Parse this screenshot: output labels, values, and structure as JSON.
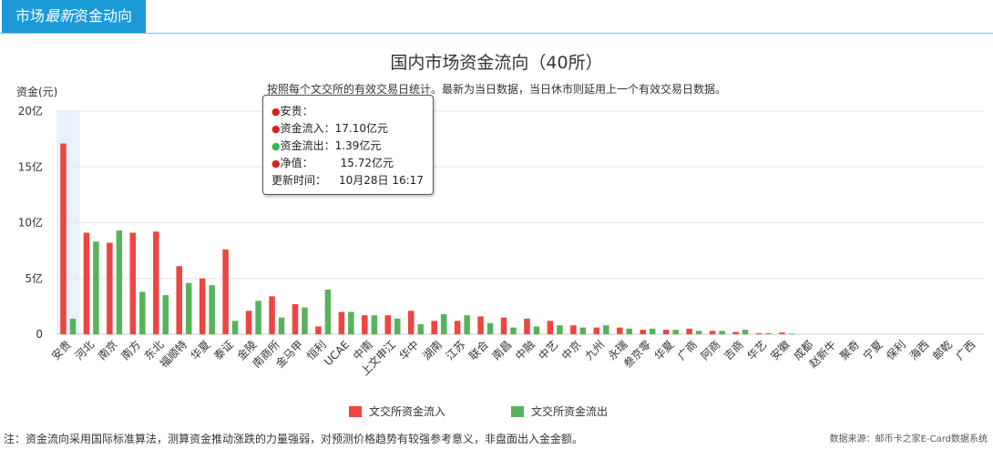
{
  "header": {
    "tab_part1": "市场",
    "tab_em": "最新",
    "tab_part2": "资金动向"
  },
  "chart_data": {
    "type": "bar",
    "title": "国内市场资金流向（40所）",
    "subtitle": "按照每个文交所的有效交易日统计。最新为当日数据，当日休市则延用上一个有效交易日数据。",
    "ylabel": "资金(元)",
    "ylim": [
      0,
      20
    ],
    "yticks": [
      0,
      5,
      10,
      15,
      20
    ],
    "ytick_labels": [
      "0",
      "5亿",
      "10亿",
      "15亿",
      "20亿"
    ],
    "grid": true,
    "legend_position": "bottom",
    "highlight_index": 0,
    "categories": [
      "安贵",
      "河北",
      "南京",
      "南方",
      "东北",
      "福顺特",
      "华夏",
      "泰证",
      "金陵",
      "南商所",
      "金马甲",
      "恒利",
      "UCAE",
      "中南",
      "上文申江",
      "华中",
      "湖南",
      "江苏",
      "联合",
      "南昌",
      "中融",
      "中艺",
      "中京",
      "九州",
      "永瑞",
      "叁京零",
      "华夏",
      "广商",
      "阿商",
      "吉商",
      "华艺",
      "安徽",
      "成都",
      "赵新牛",
      "聚奇",
      "宁夏",
      "保利",
      "海西",
      "邮乾",
      "广西"
    ],
    "series": [
      {
        "name": "文交所资金流入",
        "color": "#ee4540",
        "values": [
          17.1,
          9.1,
          8.2,
          9.1,
          9.2,
          6.1,
          5.0,
          7.6,
          2.1,
          3.4,
          2.7,
          0.7,
          2.0,
          1.7,
          1.7,
          2.1,
          1.2,
          1.2,
          1.6,
          1.5,
          1.4,
          1.2,
          0.8,
          0.6,
          0.6,
          0.4,
          0.4,
          0.5,
          0.3,
          0.2,
          0.1,
          0.15,
          0,
          0,
          0,
          0,
          0,
          0,
          0,
          0
        ]
      },
      {
        "name": "文交所资金流出",
        "color": "#57b35b",
        "values": [
          1.39,
          8.3,
          9.3,
          3.8,
          3.5,
          4.6,
          4.4,
          1.2,
          3.0,
          1.5,
          2.4,
          4.0,
          2.0,
          1.7,
          1.4,
          0.9,
          1.8,
          1.7,
          1.0,
          0.6,
          0.7,
          0.8,
          0.6,
          0.8,
          0.5,
          0.5,
          0.4,
          0.3,
          0.3,
          0.4,
          0.1,
          0.05,
          0,
          0,
          0,
          0,
          0,
          0,
          0,
          0
        ]
      }
    ],
    "tooltip": {
      "label_name": "安贵：",
      "label_in": "资金流入：",
      "value_in": "17.10亿元",
      "label_out": "资金流出：",
      "value_out": "1.39亿元",
      "label_net": "净值：",
      "value_net": "15.72亿元",
      "label_time": "更新时间：",
      "value_time": "10月28日 16:17"
    },
    "footnote": "注：资金流向采用国际标准算法，测算资金推动涨跌的力量强弱，对预测价格趋势有较强参考意义，非盘面出入金金额。",
    "source": "数据来源：邮币卡之家E-Card数据系统"
  }
}
